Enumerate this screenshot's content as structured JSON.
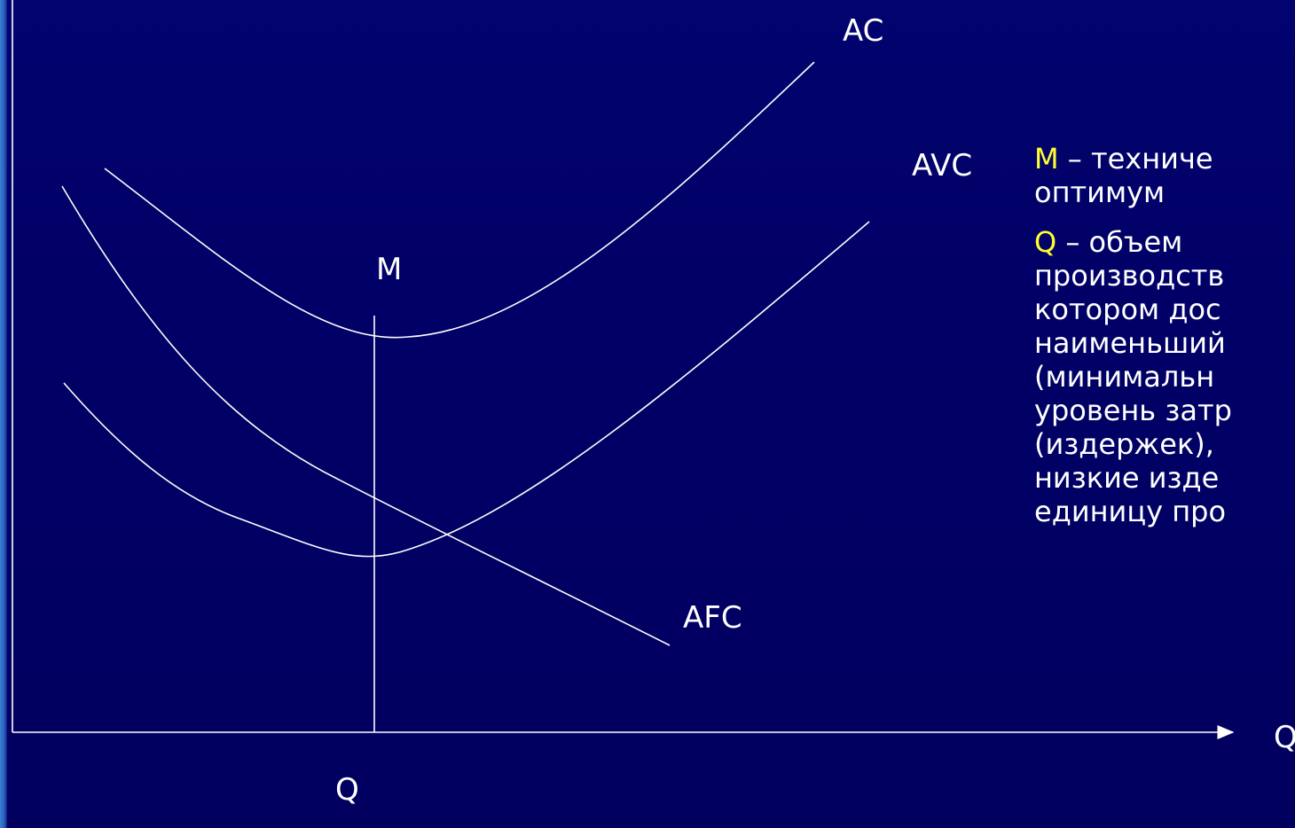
{
  "curves": {
    "ac": "AC",
    "avc": "AVC",
    "afc": "AFC"
  },
  "point_label": "M",
  "x_axis": {
    "end_label": "Q",
    "marker_label": "Q"
  },
  "legend": {
    "m_symbol": "M",
    "m_text_line1": " – техниче",
    "m_text_line2": "оптимум",
    "q_symbol": "Q",
    "q_text_line1": " – объем",
    "q_text_lines": [
      "производств",
      "котором дос",
      "наименьший",
      "(минимальн",
      "уровень затр",
      "(издержек),",
      "низкие изде",
      "единицу про"
    ]
  },
  "colors": {
    "background": "#010066",
    "line": "#ffffff",
    "symbol_highlight": "#ffff33"
  }
}
